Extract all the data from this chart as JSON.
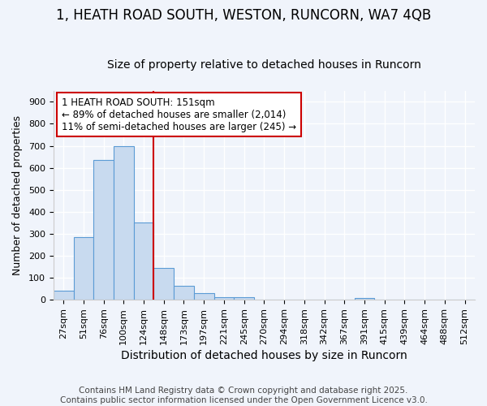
{
  "title": "1, HEATH ROAD SOUTH, WESTON, RUNCORN, WA7 4QB",
  "subtitle": "Size of property relative to detached houses in Runcorn",
  "xlabel": "Distribution of detached houses by size in Runcorn",
  "ylabel": "Number of detached properties",
  "bar_labels": [
    "27sqm",
    "51sqm",
    "76sqm",
    "100sqm",
    "124sqm",
    "148sqm",
    "173sqm",
    "197sqm",
    "221sqm",
    "245sqm",
    "270sqm",
    "294sqm",
    "318sqm",
    "342sqm",
    "367sqm",
    "391sqm",
    "415sqm",
    "439sqm",
    "464sqm",
    "488sqm",
    "512sqm"
  ],
  "bar_values": [
    42,
    285,
    635,
    700,
    350,
    145,
    65,
    30,
    13,
    10,
    0,
    0,
    0,
    0,
    0,
    7,
    0,
    0,
    0,
    0,
    0
  ],
  "bar_color": "#c8daef",
  "bar_edge_color": "#5b9bd5",
  "vline_x_index": 5,
  "vline_color": "#cc0000",
  "annotation_text": "1 HEATH ROAD SOUTH: 151sqm\n← 89% of detached houses are smaller (2,014)\n11% of semi-detached houses are larger (245) →",
  "annotation_box_color": "#ffffff",
  "annotation_box_edge_color": "#cc0000",
  "ylim": [
    0,
    950
  ],
  "yticks": [
    0,
    100,
    200,
    300,
    400,
    500,
    600,
    700,
    800,
    900
  ],
  "footnote": "Contains HM Land Registry data © Crown copyright and database right 2025.\nContains public sector information licensed under the Open Government Licence v3.0.",
  "background_color": "#f0f4fb",
  "plot_bg_color": "#f0f4fb",
  "title_fontsize": 12,
  "subtitle_fontsize": 10,
  "xlabel_fontsize": 10,
  "ylabel_fontsize": 9,
  "tick_fontsize": 8,
  "footnote_fontsize": 7.5,
  "grid_color": "#ffffff"
}
